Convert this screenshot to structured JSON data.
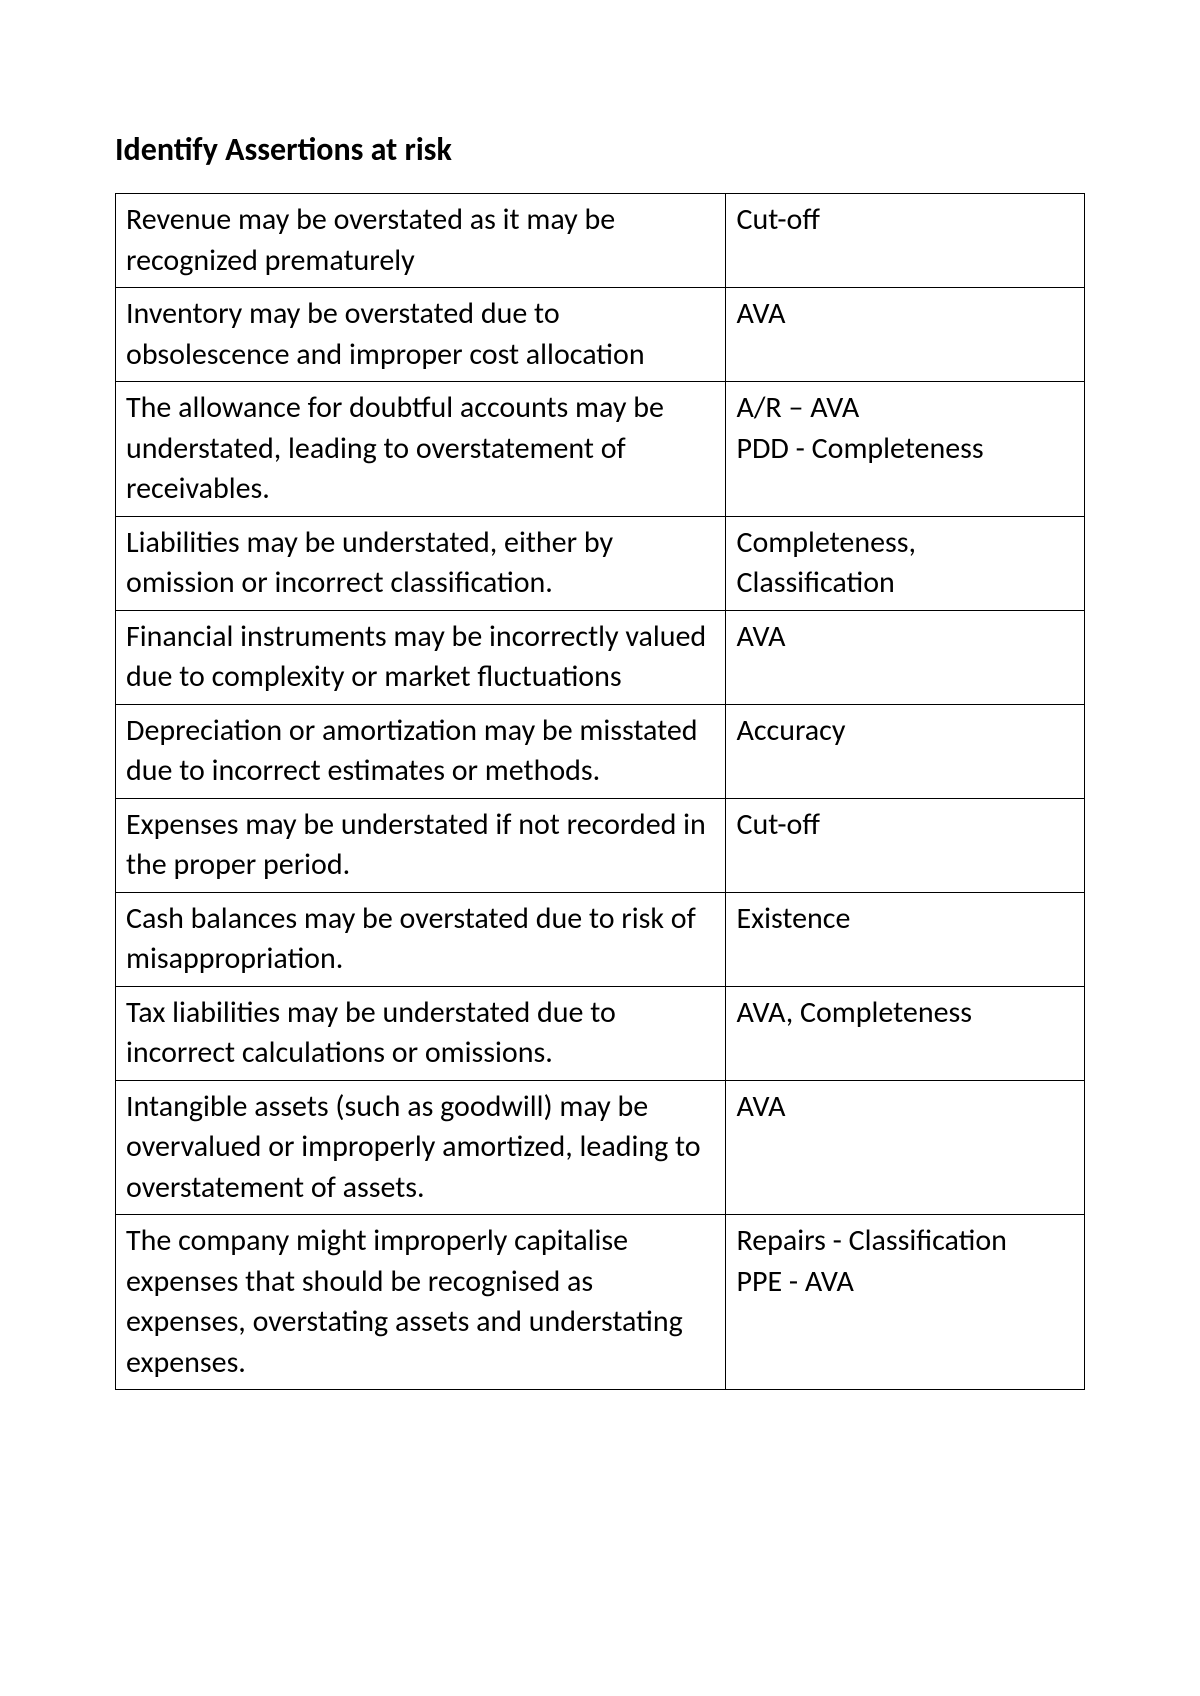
{
  "heading": "Identify Assertions at risk",
  "table": {
    "rows": [
      {
        "risk": "Revenue may be overstated as it may be recognized prematurely",
        "assertion": "Cut-off"
      },
      {
        "risk": "Inventory may be overstated due to obsolescence and improper cost allocation",
        "assertion": "AVA"
      },
      {
        "risk": "The allowance for doubtful accounts may be understated, leading to overstatement of receivables.",
        "assertion": "A/R – AVA\nPDD - Completeness"
      },
      {
        "risk": "Liabilities may be understated, either by omission or incorrect classification.",
        "assertion": "Completeness, Classification"
      },
      {
        "risk": "Financial instruments may be incorrectly valued due to complexity or market fluctuations",
        "assertion": "AVA"
      },
      {
        "risk": "Depreciation or amortization may be misstated due to incorrect estimates or methods.",
        "assertion": "Accuracy"
      },
      {
        "risk": "Expenses may be understated if not recorded in the proper period.",
        "assertion": "Cut-off"
      },
      {
        "risk": "Cash balances may be overstated due to risk of misappropriation.",
        "assertion": "Existence"
      },
      {
        "risk": "Tax liabilities may be understated due to incorrect calculations or omissions.",
        "assertion": "AVA, Completeness"
      },
      {
        "risk": "Intangible assets (such as goodwill) may be overvalued or improperly amortized, leading to overstatement of assets.",
        "assertion": "AVA"
      },
      {
        "risk": "The company might improperly capitalise expenses that should be recognised as expenses, overstating assets and understating expenses.",
        "assertion": "Repairs - Classification\nPPE - AVA"
      }
    ]
  }
}
